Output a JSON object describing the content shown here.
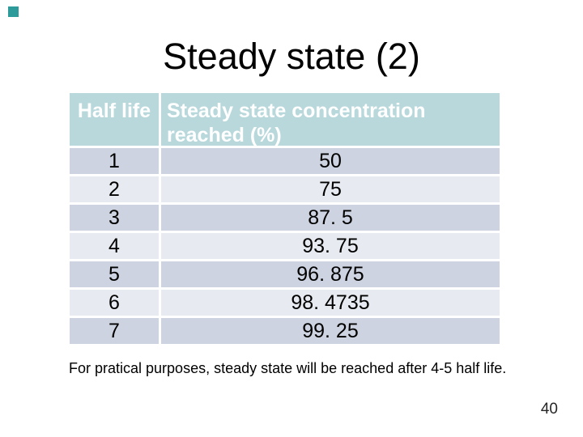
{
  "slide": {
    "title": "Steady state (2)",
    "footer_note": "For pratical purposes, steady state will be reached after 4-5 half life.",
    "page_number": "40"
  },
  "table": {
    "header": {
      "col1": "Half life",
      "col2_line1": "Steady state concentration",
      "col2_line2": "reached (%)"
    },
    "rows": [
      {
        "half_life": "1",
        "reached": "50"
      },
      {
        "half_life": "2",
        "reached": "75"
      },
      {
        "half_life": "3",
        "reached": "87. 5"
      },
      {
        "half_life": "4",
        "reached": "93. 75"
      },
      {
        "half_life": "5",
        "reached": "96. 875"
      },
      {
        "half_life": "6",
        "reached": "98. 4735"
      },
      {
        "half_life": "7",
        "reached": "99. 25"
      }
    ]
  },
  "colors": {
    "header_bg": "#b8d8dc",
    "header_text": "#ffffff",
    "row_odd_bg": "#cdd3e1",
    "row_even_bg": "#e7ebf1",
    "body_text": "#000000",
    "accent_square": "#2e9b9b",
    "page_number": "#262626"
  },
  "chart_data": {
    "type": "table",
    "title": "Steady state (2)",
    "columns": [
      "Half life",
      "Steady state concentration reached (%)"
    ],
    "rows_numeric": [
      [
        1,
        50
      ],
      [
        2,
        75
      ],
      [
        3,
        87.5
      ],
      [
        4,
        93.75
      ],
      [
        5,
        96.875
      ],
      [
        6,
        98.4735
      ],
      [
        7,
        99.25
      ]
    ],
    "note": "For pratical purposes, steady state will be reached after 4-5 half life."
  }
}
